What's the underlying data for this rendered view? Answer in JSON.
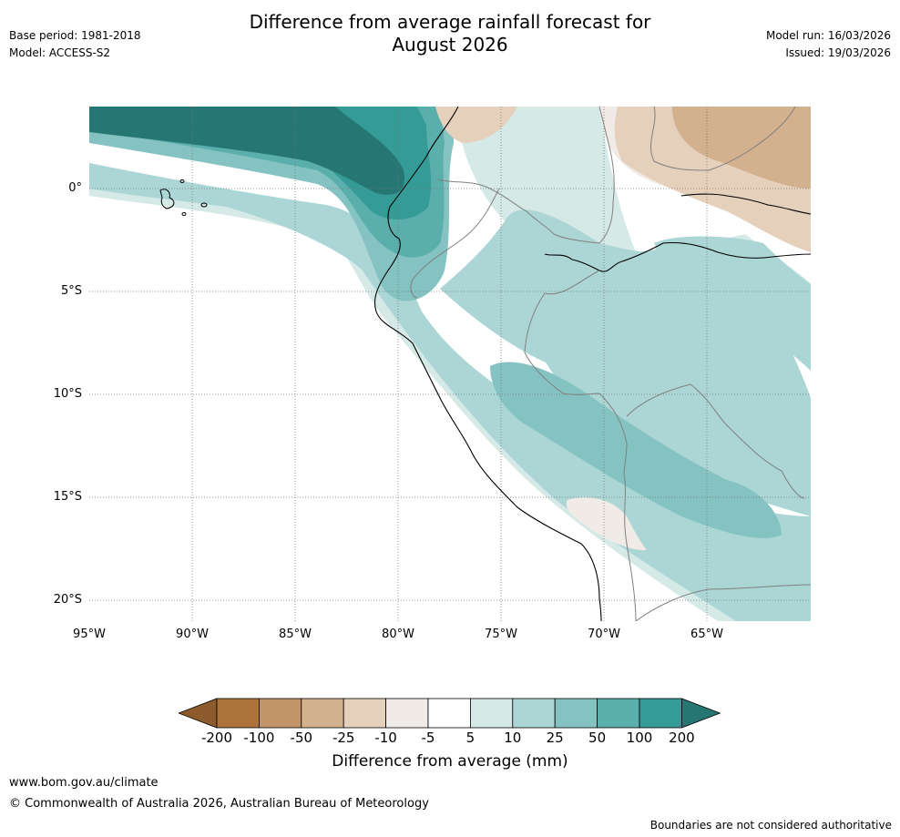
{
  "header": {
    "title_line1": "Difference from average rainfall forecast for",
    "title_line2": "August 2026",
    "base_period": "Base period: 1981-2018",
    "model": "Model: ACCESS-S2",
    "model_run": "Model run: 16/03/2026",
    "issued": "Issued: 19/03/2026"
  },
  "map": {
    "lat_labels": [
      "0°",
      "5°S",
      "10°S",
      "15°S",
      "20°S"
    ],
    "lon_labels": [
      "95°W",
      "90°W",
      "85°W",
      "80°W",
      "75°W",
      "70°W",
      "65°W"
    ]
  },
  "colorbar": {
    "title": "Difference from average (mm)",
    "levels": [
      "-200",
      "-100",
      "-50",
      "-25",
      "-10",
      "-5",
      "5",
      "10",
      "25",
      "50",
      "100",
      "200"
    ],
    "colors": [
      "#8c5a2b",
      "#ad733b",
      "#c39469",
      "#d3b08e",
      "#e5d0bc",
      "#f0ebe6",
      "#ffffff",
      "#d5e9e7",
      "#abd6d5",
      "#84c3c1",
      "#5aaeab",
      "#359b97",
      "#267673"
    ]
  },
  "footer": {
    "url": "www.bom.gov.au/climate",
    "copyright": "© Commonwealth of Australia 2026, Australian Bureau of Meteorology",
    "disclaimer": "Boundaries are not considered authoritative"
  }
}
